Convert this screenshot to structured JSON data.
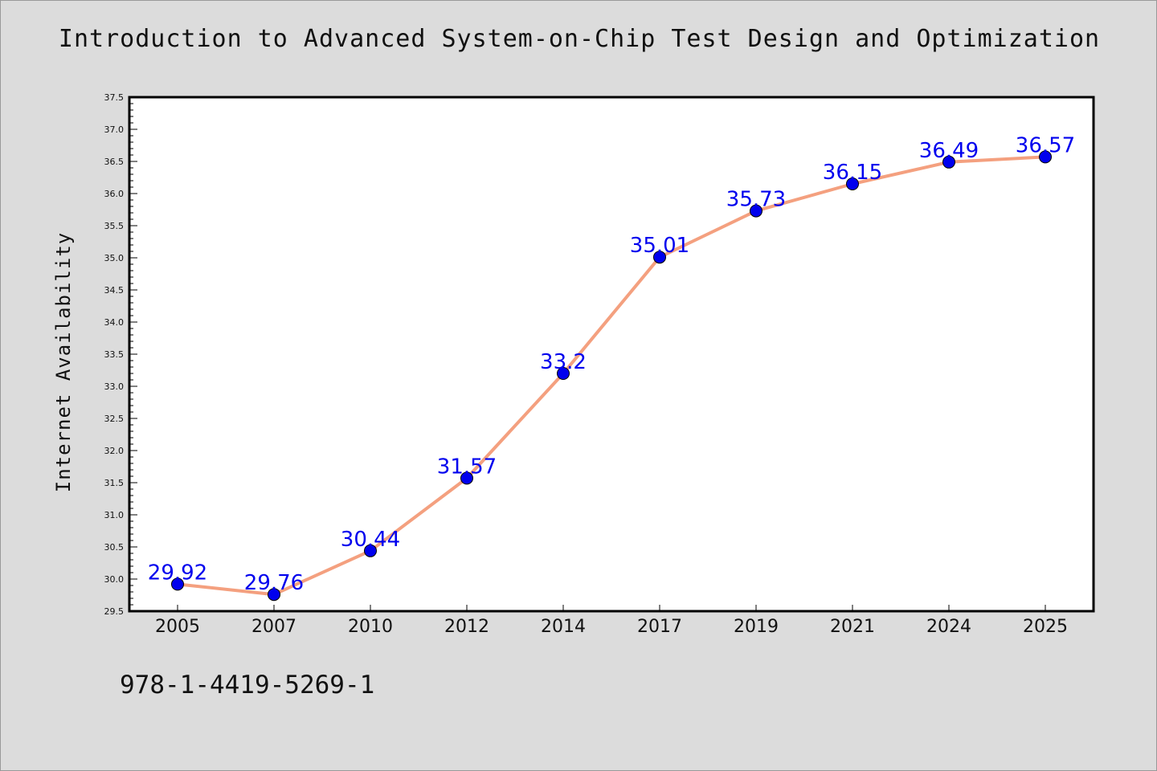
{
  "figure": {
    "background": "#dcdcdc",
    "isbn": "978-1-4419-5269-1"
  },
  "chart_data": {
    "type": "line",
    "title": "Introduction to Advanced System-on-Chip Test Design and Optimization",
    "xlabel": "",
    "ylabel": "Internet Availability",
    "categories": [
      "2005",
      "2007",
      "2010",
      "2012",
      "2014",
      "2017",
      "2019",
      "2021",
      "2024",
      "2025"
    ],
    "series": [
      {
        "values": [
          29.92,
          29.76,
          30.44,
          31.57,
          33.2,
          35.01,
          35.73,
          36.15,
          36.49,
          36.57
        ],
        "labels": [
          "29.92",
          "29.76",
          "30.44",
          "31.57",
          "33.2",
          "35.01",
          "35.73",
          "36.15",
          "36.49",
          "36.57"
        ],
        "line_color": "#f4a07f",
        "marker_color": "#0000ee",
        "label_color": "#0000ee"
      }
    ],
    "ylim": [
      29.5,
      37.5
    ],
    "ytick_step": 0.5,
    "grid": false,
    "legend": "none"
  }
}
